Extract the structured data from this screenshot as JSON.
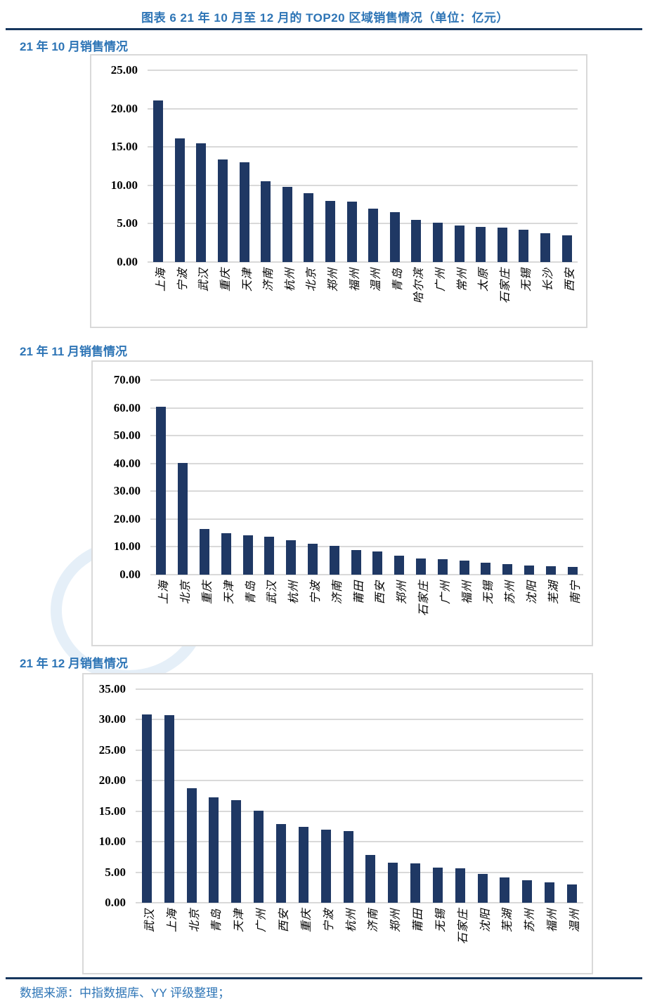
{
  "page": {
    "title": "图表 6 21 年 10 月至 12 月的 TOP20 区域销售情况（单位：亿元）",
    "footer": "数据来源：中指数据库、YY 评级整理；",
    "accent_blue": "#2E75B6",
    "rule_navy": "#17375E",
    "bar_color": "#1F3864",
    "gridline_color": "#D9D9D9"
  },
  "chart_data": [
    {
      "type": "bar",
      "title": "21 年 10 月销售情况",
      "unit": "亿元",
      "ylim": [
        0,
        25
      ],
      "ytick_step": 5,
      "grid": true,
      "legend": "none",
      "categories": [
        "上海",
        "宁波",
        "武汉",
        "重庆",
        "天津",
        "济南",
        "杭州",
        "北京",
        "郑州",
        "福州",
        "温州",
        "青岛",
        "哈尔滨",
        "广州",
        "常州",
        "太原",
        "石家庄",
        "无锡",
        "长沙",
        "西安"
      ],
      "values": [
        21.1,
        16.1,
        15.5,
        13.4,
        13.0,
        10.5,
        9.8,
        9.0,
        8.0,
        7.9,
        7.0,
        6.5,
        5.5,
        5.1,
        4.8,
        4.6,
        4.5,
        4.2,
        3.8,
        3.5
      ]
    },
    {
      "type": "bar",
      "title": "21 年 11 月销售情况",
      "unit": "亿元",
      "ylim": [
        0,
        70
      ],
      "ytick_step": 10,
      "grid": true,
      "legend": "none",
      "categories": [
        "上海",
        "北京",
        "重庆",
        "天津",
        "青岛",
        "武汉",
        "杭州",
        "宁波",
        "济南",
        "莆田",
        "西安",
        "郑州",
        "石家庄",
        "广州",
        "福州",
        "无锡",
        "苏州",
        "沈阳",
        "芜湖",
        "南宁"
      ],
      "values": [
        60.5,
        40.2,
        16.5,
        15.0,
        14.2,
        13.6,
        12.4,
        11.0,
        10.4,
        8.9,
        8.4,
        6.7,
        5.9,
        5.6,
        5.1,
        4.2,
        3.8,
        3.4,
        3.0,
        2.7
      ]
    },
    {
      "type": "bar",
      "title": "21 年 12 月销售情况",
      "unit": "亿元",
      "ylim": [
        0,
        35
      ],
      "ytick_step": 5,
      "grid": true,
      "legend": "none",
      "categories": [
        "武汉",
        "上海",
        "北京",
        "青岛",
        "天津",
        "广州",
        "西安",
        "重庆",
        "宁波",
        "杭州",
        "济南",
        "郑州",
        "莆田",
        "无锡",
        "石家庄",
        "沈阳",
        "芜湖",
        "苏州",
        "福州",
        "温州"
      ],
      "values": [
        30.8,
        30.7,
        18.8,
        17.3,
        16.8,
        15.1,
        12.9,
        12.4,
        12.0,
        11.8,
        7.8,
        6.6,
        6.4,
        5.8,
        5.6,
        4.7,
        4.2,
        3.7,
        3.3,
        3.0
      ]
    }
  ]
}
